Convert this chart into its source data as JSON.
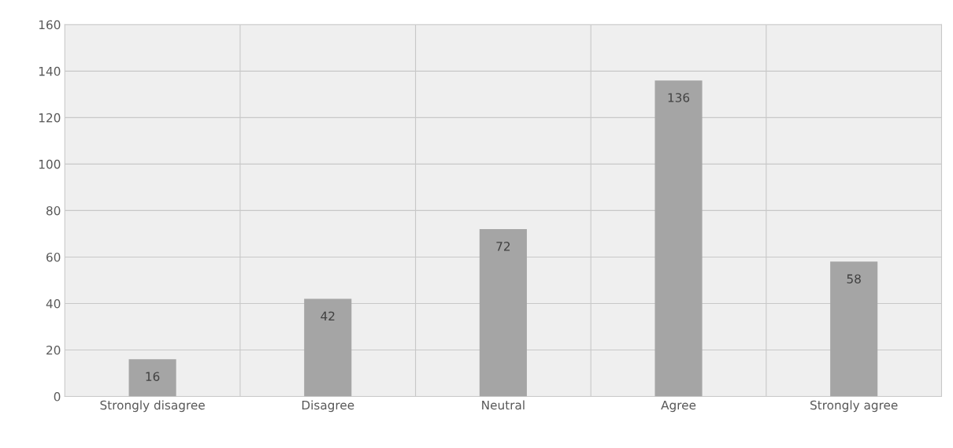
{
  "chart_data": {
    "type": "bar",
    "categories": [
      "Strongly disagree",
      "Disagree",
      "Neutral",
      "Agree",
      "Strongly agree"
    ],
    "values": [
      16,
      42,
      72,
      136,
      58
    ],
    "color": "#a5a5a5",
    "ylim": [
      0,
      160
    ],
    "yticks": [
      0,
      20,
      40,
      60,
      80,
      100,
      120,
      140,
      160
    ],
    "grid": true,
    "data_labels": true
  }
}
